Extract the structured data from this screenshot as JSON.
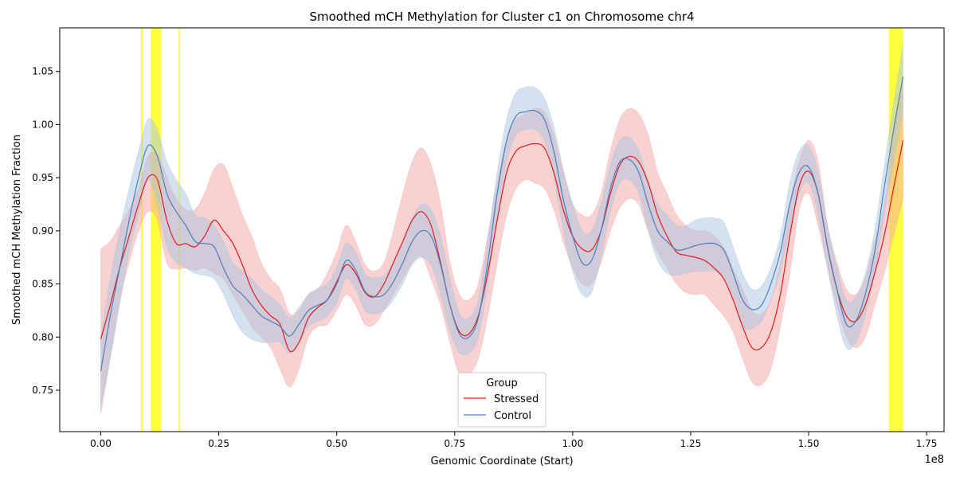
{
  "colors": {
    "stressed": "#e41a1c",
    "control": "#4a80bf",
    "stressed_band": "#f4a3a4",
    "control_band": "#a9c4e0",
    "highlight": "#ffff00"
  },
  "chart_data": {
    "type": "line",
    "title": "Smoothed mCH Methylation for Cluster c1 on Chromosome chr4",
    "xlabel": "Genomic Coordinate (Start)",
    "ylabel": "Smoothed mCH Methylation Fraction",
    "x_offset_label": "1e8",
    "xlim": [
      -0.087,
      1.787
    ],
    "ylim": [
      0.711,
      1.091
    ],
    "x_scale_note": "x values in units of 1e8",
    "x_ticks": [
      0.0,
      0.25,
      0.5,
      0.75,
      1.0,
      1.25,
      1.5,
      1.75
    ],
    "x_tick_labels": [
      "0.00",
      "0.25",
      "0.50",
      "0.75",
      "1.00",
      "1.25",
      "1.50",
      "1.75"
    ],
    "y_ticks": [
      0.75,
      0.8,
      0.85,
      0.9,
      0.95,
      1.0,
      1.05
    ],
    "y_tick_labels": [
      "0.75",
      "0.80",
      "0.85",
      "0.90",
      "0.95",
      "1.00",
      "1.05"
    ],
    "grid": false,
    "legend": {
      "title": "Group",
      "placement": "lower-center",
      "entries": [
        "Stressed",
        "Control"
      ]
    },
    "highlight_regions": [
      [
        0.085,
        0.089
      ],
      [
        0.106,
        0.128
      ],
      [
        0.165,
        0.168
      ],
      [
        1.67,
        1.7
      ]
    ],
    "series": [
      {
        "name": "Stressed",
        "x": [
          0.0,
          0.02,
          0.04,
          0.06,
          0.08,
          0.1,
          0.12,
          0.14,
          0.16,
          0.18,
          0.2,
          0.22,
          0.24,
          0.26,
          0.28,
          0.3,
          0.32,
          0.34,
          0.36,
          0.38,
          0.4,
          0.42,
          0.44,
          0.46,
          0.48,
          0.5,
          0.52,
          0.54,
          0.56,
          0.58,
          0.6,
          0.62,
          0.64,
          0.66,
          0.68,
          0.7,
          0.72,
          0.74,
          0.76,
          0.78,
          0.8,
          0.82,
          0.84,
          0.86,
          0.88,
          0.9,
          0.92,
          0.94,
          0.96,
          0.98,
          1.0,
          1.02,
          1.04,
          1.06,
          1.08,
          1.1,
          1.12,
          1.14,
          1.16,
          1.18,
          1.2,
          1.22,
          1.24,
          1.26,
          1.28,
          1.3,
          1.32,
          1.34,
          1.36,
          1.38,
          1.4,
          1.42,
          1.44,
          1.46,
          1.48,
          1.5,
          1.52,
          1.54,
          1.56,
          1.58,
          1.6,
          1.62,
          1.64,
          1.66,
          1.68,
          1.7
        ],
        "values": [
          0.798,
          0.83,
          0.865,
          0.895,
          0.925,
          0.95,
          0.948,
          0.91,
          0.888,
          0.888,
          0.885,
          0.895,
          0.91,
          0.9,
          0.888,
          0.868,
          0.845,
          0.83,
          0.82,
          0.812,
          0.787,
          0.795,
          0.818,
          0.828,
          0.835,
          0.852,
          0.868,
          0.86,
          0.842,
          0.838,
          0.85,
          0.87,
          0.89,
          0.91,
          0.918,
          0.905,
          0.87,
          0.83,
          0.805,
          0.803,
          0.82,
          0.86,
          0.91,
          0.955,
          0.975,
          0.98,
          0.982,
          0.978,
          0.955,
          0.92,
          0.895,
          0.883,
          0.882,
          0.9,
          0.935,
          0.962,
          0.97,
          0.965,
          0.945,
          0.915,
          0.895,
          0.88,
          0.877,
          0.875,
          0.872,
          0.865,
          0.855,
          0.835,
          0.81,
          0.79,
          0.79,
          0.805,
          0.84,
          0.895,
          0.942,
          0.956,
          0.935,
          0.885,
          0.845,
          0.82,
          0.815,
          0.83,
          0.86,
          0.895,
          0.94,
          0.985
        ],
        "lower": [
          0.728,
          0.78,
          0.835,
          0.87,
          0.9,
          0.918,
          0.91,
          0.87,
          0.864,
          0.865,
          0.863,
          0.865,
          0.86,
          0.855,
          0.84,
          0.825,
          0.81,
          0.8,
          0.79,
          0.77,
          0.753,
          0.77,
          0.8,
          0.81,
          0.812,
          0.825,
          0.84,
          0.83,
          0.812,
          0.812,
          0.825,
          0.84,
          0.855,
          0.87,
          0.876,
          0.855,
          0.83,
          0.795,
          0.765,
          0.765,
          0.78,
          0.82,
          0.87,
          0.915,
          0.94,
          0.948,
          0.945,
          0.94,
          0.92,
          0.89,
          0.865,
          0.85,
          0.85,
          0.87,
          0.9,
          0.922,
          0.93,
          0.925,
          0.9,
          0.88,
          0.865,
          0.85,
          0.842,
          0.84,
          0.84,
          0.83,
          0.82,
          0.805,
          0.78,
          0.758,
          0.755,
          0.77,
          0.81,
          0.86,
          0.92,
          0.935,
          0.905,
          0.865,
          0.83,
          0.8,
          0.79,
          0.8,
          0.83,
          0.86,
          0.895,
          0.93
        ],
        "upper": [
          0.883,
          0.89,
          0.905,
          0.92,
          0.94,
          0.97,
          0.972,
          0.95,
          0.93,
          0.92,
          0.92,
          0.935,
          0.958,
          0.962,
          0.94,
          0.915,
          0.895,
          0.87,
          0.855,
          0.845,
          0.822,
          0.825,
          0.84,
          0.845,
          0.86,
          0.88,
          0.905,
          0.89,
          0.868,
          0.862,
          0.87,
          0.9,
          0.935,
          0.965,
          0.978,
          0.962,
          0.925,
          0.87,
          0.84,
          0.835,
          0.85,
          0.895,
          0.945,
          0.985,
          1.005,
          1.01,
          1.015,
          1.012,
          0.99,
          0.955,
          0.925,
          0.915,
          0.915,
          0.935,
          0.975,
          1.005,
          1.015,
          1.01,
          0.99,
          0.955,
          0.935,
          0.915,
          0.905,
          0.9,
          0.9,
          0.895,
          0.885,
          0.865,
          0.845,
          0.825,
          0.822,
          0.835,
          0.87,
          0.925,
          0.965,
          0.985,
          0.965,
          0.905,
          0.87,
          0.845,
          0.84,
          0.855,
          0.89,
          0.925,
          0.99,
          1.04
        ]
      },
      {
        "name": "Control",
        "x": [
          0.0,
          0.02,
          0.04,
          0.06,
          0.08,
          0.1,
          0.12,
          0.14,
          0.16,
          0.18,
          0.2,
          0.22,
          0.24,
          0.26,
          0.28,
          0.3,
          0.32,
          0.34,
          0.36,
          0.38,
          0.4,
          0.42,
          0.44,
          0.46,
          0.48,
          0.5,
          0.52,
          0.54,
          0.56,
          0.58,
          0.6,
          0.62,
          0.64,
          0.66,
          0.68,
          0.7,
          0.72,
          0.74,
          0.76,
          0.78,
          0.8,
          0.82,
          0.84,
          0.86,
          0.88,
          0.9,
          0.92,
          0.94,
          0.96,
          0.98,
          1.0,
          1.02,
          1.04,
          1.06,
          1.08,
          1.1,
          1.12,
          1.14,
          1.16,
          1.18,
          1.2,
          1.22,
          1.24,
          1.26,
          1.28,
          1.3,
          1.32,
          1.34,
          1.36,
          1.38,
          1.4,
          1.42,
          1.44,
          1.46,
          1.48,
          1.5,
          1.52,
          1.54,
          1.56,
          1.58,
          1.6,
          1.62,
          1.64,
          1.66,
          1.68,
          1.7
        ],
        "values": [
          0.768,
          0.82,
          0.865,
          0.91,
          0.95,
          0.98,
          0.97,
          0.935,
          0.918,
          0.905,
          0.89,
          0.888,
          0.885,
          0.865,
          0.848,
          0.84,
          0.83,
          0.82,
          0.815,
          0.81,
          0.801,
          0.812,
          0.825,
          0.83,
          0.835,
          0.85,
          0.872,
          0.863,
          0.843,
          0.838,
          0.84,
          0.852,
          0.87,
          0.89,
          0.9,
          0.895,
          0.868,
          0.83,
          0.803,
          0.8,
          0.818,
          0.87,
          0.935,
          0.985,
          1.008,
          1.012,
          1.013,
          1.005,
          0.975,
          0.93,
          0.895,
          0.87,
          0.872,
          0.9,
          0.94,
          0.965,
          0.967,
          0.955,
          0.925,
          0.9,
          0.89,
          0.882,
          0.883,
          0.886,
          0.888,
          0.888,
          0.882,
          0.86,
          0.835,
          0.826,
          0.83,
          0.85,
          0.88,
          0.925,
          0.955,
          0.96,
          0.935,
          0.885,
          0.845,
          0.812,
          0.815,
          0.84,
          0.88,
          0.94,
          0.995,
          1.045
        ],
        "lower": [
          0.735,
          0.78,
          0.83,
          0.88,
          0.915,
          0.948,
          0.925,
          0.885,
          0.87,
          0.865,
          0.86,
          0.858,
          0.855,
          0.84,
          0.82,
          0.805,
          0.798,
          0.795,
          0.795,
          0.795,
          0.785,
          0.795,
          0.81,
          0.815,
          0.82,
          0.832,
          0.855,
          0.845,
          0.825,
          0.822,
          0.825,
          0.835,
          0.85,
          0.868,
          0.875,
          0.868,
          0.84,
          0.805,
          0.785,
          0.785,
          0.8,
          0.85,
          0.912,
          0.965,
          0.99,
          0.995,
          0.995,
          0.985,
          0.95,
          0.9,
          0.862,
          0.84,
          0.842,
          0.875,
          0.918,
          0.945,
          0.948,
          0.935,
          0.9,
          0.872,
          0.86,
          0.858,
          0.86,
          0.862,
          0.862,
          0.862,
          0.855,
          0.835,
          0.81,
          0.808,
          0.815,
          0.835,
          0.862,
          0.9,
          0.935,
          0.945,
          0.915,
          0.865,
          0.82,
          0.79,
          0.795,
          0.82,
          0.86,
          0.915,
          0.965,
          1.01
        ],
        "upper": [
          0.8,
          0.855,
          0.9,
          0.94,
          0.975,
          1.005,
          0.995,
          0.965,
          0.948,
          0.935,
          0.915,
          0.912,
          0.905,
          0.89,
          0.87,
          0.862,
          0.855,
          0.845,
          0.838,
          0.83,
          0.818,
          0.828,
          0.84,
          0.846,
          0.85,
          0.866,
          0.888,
          0.88,
          0.86,
          0.856,
          0.858,
          0.87,
          0.89,
          0.912,
          0.925,
          0.92,
          0.895,
          0.855,
          0.822,
          0.818,
          0.835,
          0.89,
          0.955,
          1.005,
          1.03,
          1.035,
          1.035,
          1.025,
          0.998,
          0.958,
          0.925,
          0.9,
          0.9,
          0.925,
          0.962,
          0.985,
          0.988,
          0.975,
          0.948,
          0.925,
          0.915,
          0.905,
          0.905,
          0.91,
          0.912,
          0.912,
          0.908,
          0.885,
          0.86,
          0.845,
          0.848,
          0.865,
          0.895,
          0.945,
          0.975,
          0.98,
          0.955,
          0.905,
          0.865,
          0.835,
          0.838,
          0.86,
          0.9,
          0.96,
          1.02,
          1.075
        ]
      }
    ]
  }
}
